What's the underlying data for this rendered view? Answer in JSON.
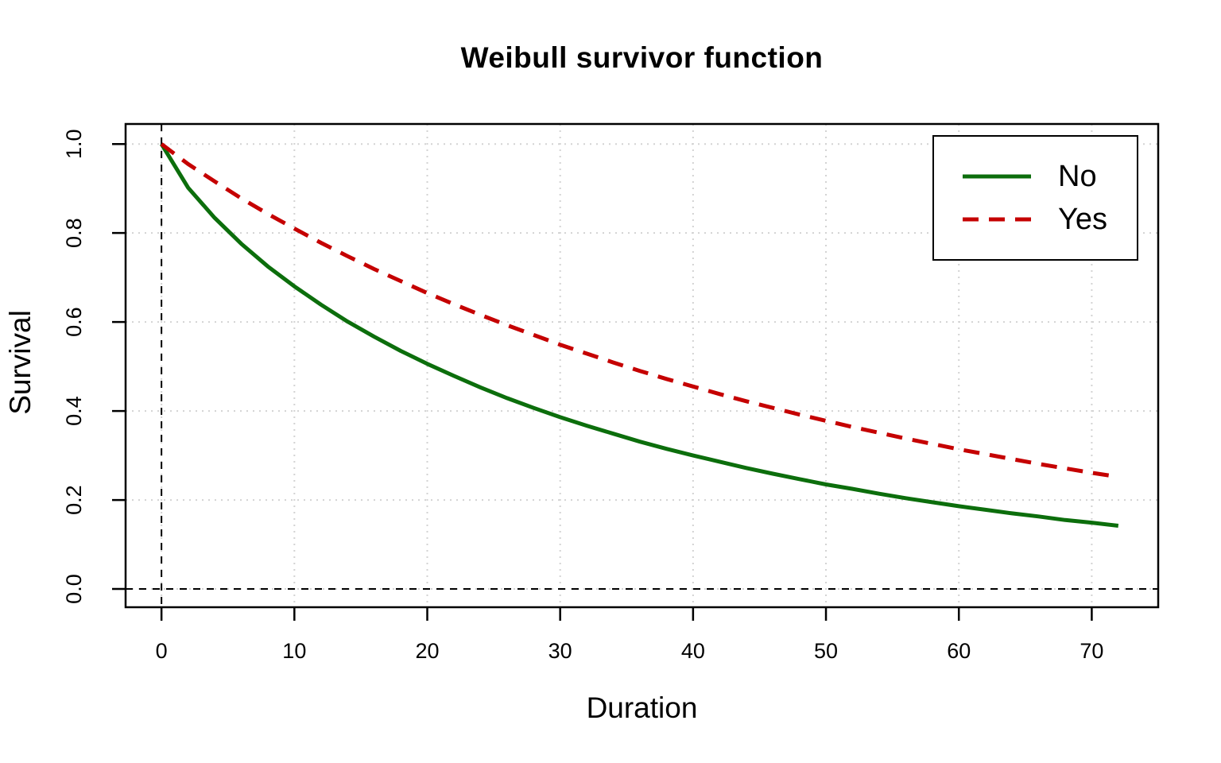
{
  "figure": {
    "title": "Weibull survivor function",
    "x_label": "Duration",
    "y_label": "Survival",
    "background": "#ffffff"
  },
  "legend": {
    "position": "topright",
    "background": "#ffffff",
    "border_color": "#000000"
  },
  "chart_data": {
    "type": "line",
    "title": "Weibull survivor function",
    "xlabel": "Duration",
    "ylabel": "Survival",
    "xlim": [
      -2.7,
      75.0
    ],
    "ylim": [
      -0.041,
      1.045
    ],
    "x_ticks": [
      0,
      10,
      20,
      30,
      40,
      50,
      60,
      70
    ],
    "y_ticks": [
      "0.0",
      "0.2",
      "0.4",
      "0.6",
      "0.8",
      "1.0"
    ],
    "grid": true,
    "grid_style": "dotted",
    "reference_lines": {
      "vertical_x": 0,
      "horizontal_y": 0,
      "style": "black dashed"
    },
    "legend_position": "topright",
    "colors": {
      "grid": "#d3d3d3",
      "axis": "#000000"
    },
    "x": [
      0,
      2,
      4,
      6,
      8,
      10,
      12,
      14,
      16,
      18,
      20,
      22,
      24,
      26,
      28,
      30,
      32,
      34,
      36,
      38,
      40,
      42,
      44,
      46,
      48,
      50,
      52,
      54,
      56,
      58,
      60,
      62,
      64,
      66,
      68,
      70,
      72
    ],
    "series": [
      {
        "name": "No",
        "color": "#0c6e0c",
        "style": "solid",
        "values": [
          1.0,
          0.902,
          0.834,
          0.776,
          0.725,
          0.68,
          0.639,
          0.601,
          0.567,
          0.535,
          0.506,
          0.479,
          0.453,
          0.429,
          0.407,
          0.386,
          0.367,
          0.349,
          0.331,
          0.315,
          0.3,
          0.286,
          0.272,
          0.259,
          0.247,
          0.235,
          0.225,
          0.214,
          0.204,
          0.195,
          0.186,
          0.178,
          0.17,
          0.163,
          0.155,
          0.149,
          0.142
        ]
      },
      {
        "name": "Yes",
        "color": "#c50000",
        "style": "dashed",
        "values": [
          1.0,
          0.955,
          0.916,
          0.878,
          0.843,
          0.81,
          0.778,
          0.748,
          0.719,
          0.692,
          0.665,
          0.64,
          0.616,
          0.593,
          0.571,
          0.549,
          0.529,
          0.509,
          0.49,
          0.472,
          0.455,
          0.438,
          0.422,
          0.407,
          0.392,
          0.378,
          0.364,
          0.351,
          0.338,
          0.326,
          0.314,
          0.303,
          0.292,
          0.281,
          0.271,
          0.261,
          0.252
        ]
      }
    ]
  }
}
